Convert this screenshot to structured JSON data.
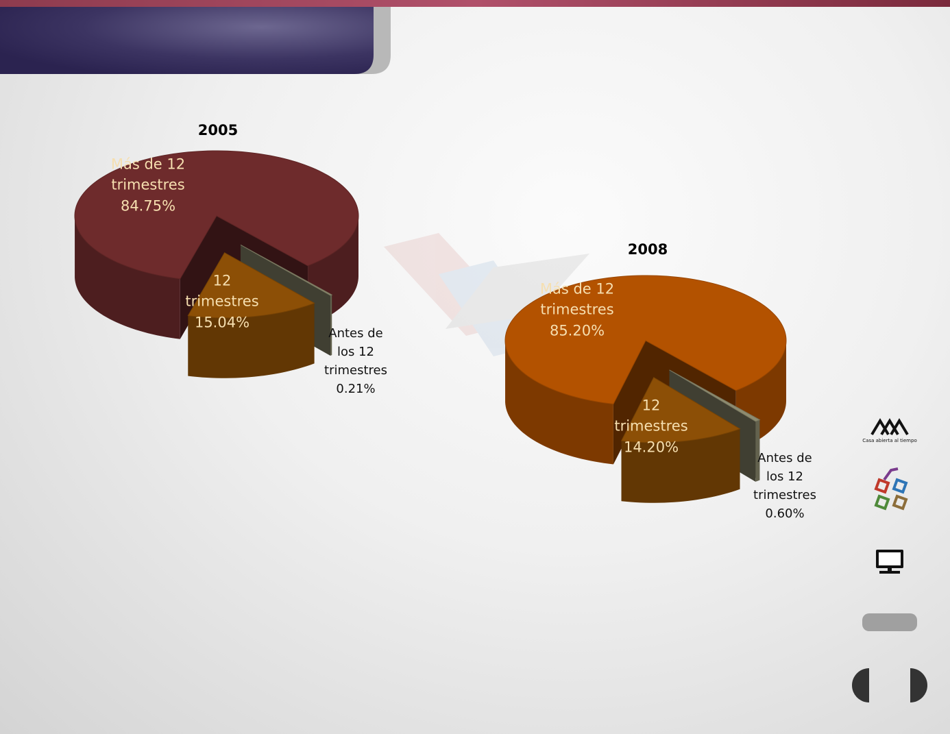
{
  "chart_data": [
    {
      "type": "pie",
      "title": "2005",
      "categories": [
        "Más de 12 trimestres",
        "12 trimestres",
        "Antes de los 12 trimestres"
      ],
      "values": [
        84.75,
        15.04,
        0.21
      ],
      "value_labels": [
        "84.75%",
        "15.04%",
        "0.21%"
      ],
      "colors": [
        "#6e2b2c",
        "#8c4f06",
        "#8e8c70"
      ]
    },
    {
      "type": "pie",
      "title": "2008",
      "categories": [
        "Más de 12 trimestres",
        "12 trimestres",
        "Antes de los 12 trimestres"
      ],
      "values": [
        85.2,
        14.2,
        0.6
      ],
      "value_labels": [
        "85.20%",
        "14.20%",
        "0.60%"
      ],
      "colors": [
        "#b35200",
        "#8c4f06",
        "#8e8c70"
      ]
    }
  ],
  "sidebar": {
    "logo_caption": "Casa abierta al tiempo"
  }
}
